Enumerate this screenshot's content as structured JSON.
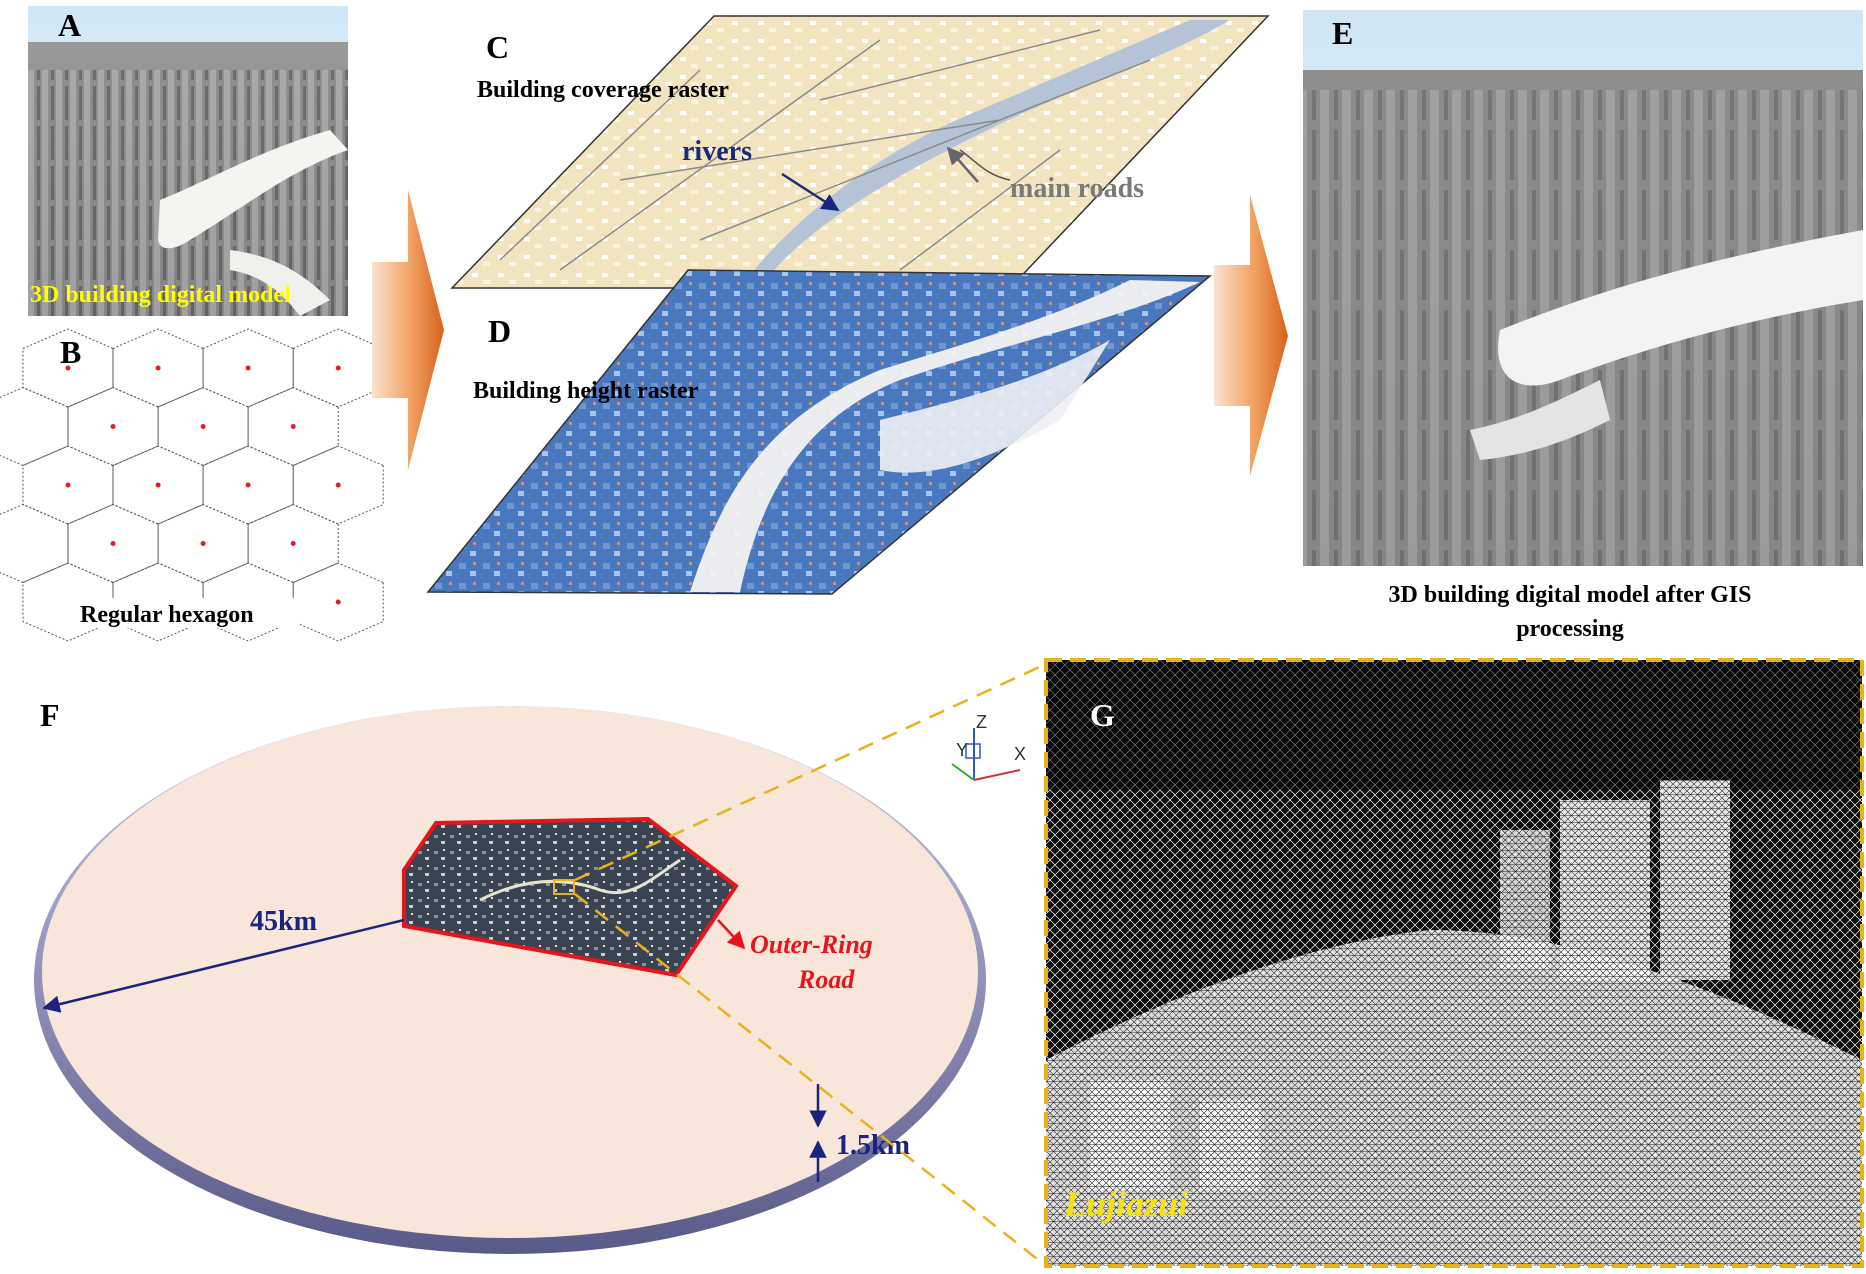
{
  "panels": {
    "a": {
      "letter": "A",
      "caption": "3D building digital model"
    },
    "b": {
      "letter": "B",
      "caption": "Regular hexagon"
    },
    "c": {
      "letter": "C",
      "caption": "Building coverage raster",
      "rivers_label": "rivers",
      "roads_label": "main roads"
    },
    "d": {
      "letter": "D",
      "caption": "Building height raster"
    },
    "e": {
      "letter": "E",
      "caption_line1": "3D building digital model after GIS",
      "caption_line2": "processing"
    },
    "f": {
      "letter": "F",
      "radius_label": "45km",
      "thickness_label": "1.5km",
      "ring_road_line1": "Outer-Ring",
      "ring_road_line2": "Road"
    },
    "g": {
      "letter": "G",
      "place_label": "Lujiazui"
    }
  },
  "axes": {
    "x": "X",
    "y": "Y",
    "z": "Z"
  },
  "colors": {
    "arrow_orange": "#e06a1e",
    "hex_center_red": "#e02020",
    "coverage_beige": "#f3e4c0",
    "height_blue": "#4a78bf",
    "disk_fill": "#f7e6d9",
    "disk_rim": "#7f7fb3",
    "outer_ring_red": "#e8141c",
    "dimension_navy": "#1a237e",
    "dashed_yellow": "#e8b21a",
    "lujiazui_yellow": "#f5e20a",
    "label_yellow": "#ffff00"
  }
}
